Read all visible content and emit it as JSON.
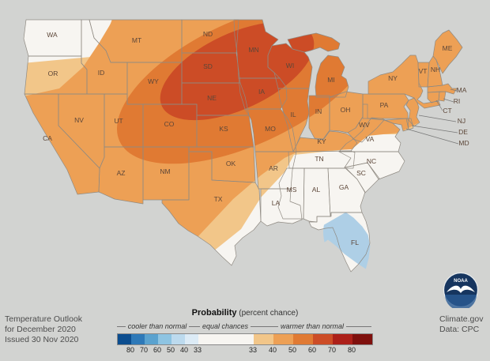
{
  "attribution": {
    "line1": "Temperature Outlook",
    "line2": "for December 2020",
    "line3": "Issued 30 Nov 2020"
  },
  "source": {
    "site": "Climate.gov",
    "data": "Data: CPC",
    "logo_label": "NOAA"
  },
  "legend": {
    "title": "Probability",
    "title_suffix": " (percent chance)",
    "sections": [
      {
        "id": "cooler",
        "label": "cooler than normal"
      },
      {
        "id": "equal",
        "label": "equal chances"
      },
      {
        "id": "warmer",
        "label": "warmer than normal"
      }
    ],
    "cool_ticks": [
      "80",
      "70",
      "60",
      "50",
      "40",
      "33"
    ],
    "warm_ticks": [
      "33",
      "40",
      "50",
      "60",
      "70",
      "80"
    ],
    "cool_colors": [
      "#0b4d8f",
      "#2e79b8",
      "#5aa2cf",
      "#8ec4e2",
      "#bcdaee",
      "#dcebf6"
    ],
    "warm_colors": [
      "#f2c689",
      "#eda055",
      "#e07a33",
      "#cc4c26",
      "#ac2019",
      "#7f100d"
    ],
    "equal_color": "#f7f5f1"
  },
  "colors": {
    "background": "#d2d3d1",
    "land_equal": "#f7f5f1",
    "border": "#8f8a82",
    "label": "#5c4638",
    "florida_cool": "#aecfe6"
  },
  "map_data": {
    "type": "choropleth",
    "region": "contiguous United States",
    "variable": "Temperature outlook probability, December 2020",
    "states": [
      {
        "abbr": "WA",
        "outlook": "equal chances"
      },
      {
        "abbr": "OR",
        "outlook": "warmer 33-40%"
      },
      {
        "abbr": "CA",
        "outlook": "warmer 40-50%"
      },
      {
        "abbr": "NV",
        "outlook": "warmer 40-50%"
      },
      {
        "abbr": "ID",
        "outlook": "warmer 40-50%"
      },
      {
        "abbr": "MT",
        "outlook": "warmer 40-50%"
      },
      {
        "abbr": "WY",
        "outlook": "warmer 40-50%"
      },
      {
        "abbr": "UT",
        "outlook": "warmer 40-50%"
      },
      {
        "abbr": "CO",
        "outlook": "warmer 40-50%"
      },
      {
        "abbr": "AZ",
        "outlook": "warmer 40-50%"
      },
      {
        "abbr": "NM",
        "outlook": "warmer 40-50%"
      },
      {
        "abbr": "ND",
        "outlook": "warmer 50-60%"
      },
      {
        "abbr": "SD",
        "outlook": "warmer 60-70%"
      },
      {
        "abbr": "NE",
        "outlook": "warmer 60-70%"
      },
      {
        "abbr": "KS",
        "outlook": "warmer 50-60%"
      },
      {
        "abbr": "OK",
        "outlook": "warmer 40-50%"
      },
      {
        "abbr": "TX",
        "outlook": "warmer 40-50%"
      },
      {
        "abbr": "MN",
        "outlook": "warmer 60-70%"
      },
      {
        "abbr": "IA",
        "outlook": "warmer 60-70%"
      },
      {
        "abbr": "MO",
        "outlook": "warmer 50-60%"
      },
      {
        "abbr": "AR",
        "outlook": "warmer 33-40%"
      },
      {
        "abbr": "LA",
        "outlook": "equal chances"
      },
      {
        "abbr": "WI",
        "outlook": "warmer 50-60%"
      },
      {
        "abbr": "IL",
        "outlook": "warmer 50-60%"
      },
      {
        "abbr": "MI",
        "outlook": "warmer 50-60%"
      },
      {
        "abbr": "IN",
        "outlook": "warmer 40-50%"
      },
      {
        "abbr": "OH",
        "outlook": "warmer 40-50%"
      },
      {
        "abbr": "KY",
        "outlook": "warmer 40-50%"
      },
      {
        "abbr": "TN",
        "outlook": "equal chances"
      },
      {
        "abbr": "MS",
        "outlook": "equal chances"
      },
      {
        "abbr": "AL",
        "outlook": "equal chances"
      },
      {
        "abbr": "GA",
        "outlook": "equal chances"
      },
      {
        "abbr": "FL",
        "outlook": "cooler 33-40%"
      },
      {
        "abbr": "SC",
        "outlook": "equal chances"
      },
      {
        "abbr": "NC",
        "outlook": "equal chances"
      },
      {
        "abbr": "VA",
        "outlook": "equal chances"
      },
      {
        "abbr": "WV",
        "outlook": "warmer 40-50%"
      },
      {
        "abbr": "PA",
        "outlook": "warmer 40-50%"
      },
      {
        "abbr": "NY",
        "outlook": "warmer 40-50%"
      },
      {
        "abbr": "NJ",
        "outlook": "warmer 40-50%"
      },
      {
        "abbr": "DE",
        "outlook": "warmer 40-50%"
      },
      {
        "abbr": "MD",
        "outlook": "warmer 40-50%"
      },
      {
        "abbr": "VT",
        "outlook": "warmer 40-50%"
      },
      {
        "abbr": "NH",
        "outlook": "warmer 40-50%"
      },
      {
        "abbr": "MA",
        "outlook": "warmer 40-50%"
      },
      {
        "abbr": "CT",
        "outlook": "warmer 40-50%"
      },
      {
        "abbr": "RI",
        "outlook": "warmer 40-50%"
      },
      {
        "abbr": "ME",
        "outlook": "warmer 40-50%"
      }
    ]
  }
}
